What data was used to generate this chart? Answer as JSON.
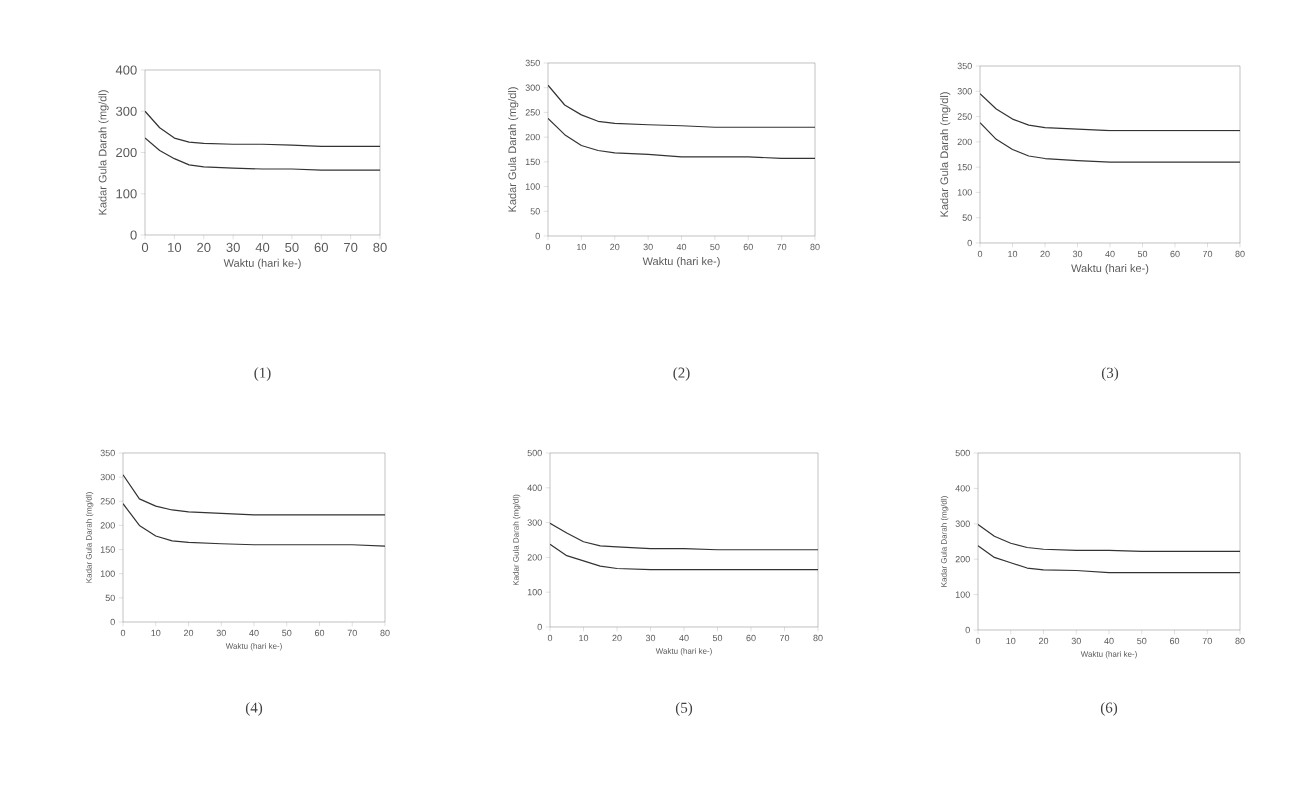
{
  "chart_data": [
    {
      "type": "line",
      "title": "(1)",
      "xlabel": "Waktu (hari ke-)",
      "ylabel": "Kadar Gula Darah (mg/dl)",
      "x": [
        0,
        5,
        10,
        15,
        20,
        30,
        40,
        50,
        60,
        70,
        80
      ],
      "xlim": [
        0,
        80
      ],
      "xticks": [
        0,
        10,
        20,
        30,
        40,
        50,
        60,
        70,
        80
      ],
      "ylim": [
        0,
        400
      ],
      "yticks": [
        0,
        100,
        200,
        300,
        400
      ],
      "series": [
        {
          "color": "#333333",
          "values": [
            300,
            260,
            235,
            225,
            222,
            220,
            220,
            218,
            215,
            215,
            215
          ]
        },
        {
          "color": "#333333",
          "values": [
            235,
            205,
            185,
            170,
            165,
            162,
            160,
            160,
            157,
            157,
            157
          ]
        }
      ]
    },
    {
      "type": "line",
      "title": "(2)",
      "xlabel": "Waktu (hari ke-)",
      "ylabel": "Kadar Gula Darah (mg/dl)",
      "x": [
        0,
        5,
        10,
        15,
        20,
        30,
        40,
        50,
        60,
        70,
        80
      ],
      "xlim": [
        0,
        80
      ],
      "xticks": [
        0,
        10,
        20,
        30,
        40,
        50,
        60,
        70,
        80
      ],
      "ylim": [
        0,
        350
      ],
      "yticks": [
        0,
        50,
        100,
        150,
        200,
        250,
        300,
        350
      ],
      "series": [
        {
          "color": "#333333",
          "values": [
            305,
            265,
            245,
            232,
            228,
            225,
            223,
            220,
            220,
            220,
            220
          ]
        },
        {
          "color": "#333333",
          "values": [
            238,
            205,
            183,
            173,
            168,
            165,
            160,
            160,
            160,
            157,
            157
          ]
        }
      ]
    },
    {
      "type": "line",
      "title": "(3)",
      "xlabel": "Waktu (hari ke-)",
      "ylabel": "Kadar Gula Darah (mg/dl)",
      "x": [
        0,
        5,
        10,
        15,
        20,
        30,
        40,
        50,
        60,
        70,
        80
      ],
      "xlim": [
        0,
        80
      ],
      "xticks": [
        0,
        10,
        20,
        30,
        40,
        50,
        60,
        70,
        80
      ],
      "ylim": [
        0,
        350
      ],
      "yticks": [
        0,
        50,
        100,
        150,
        200,
        250,
        300,
        350
      ],
      "series": [
        {
          "color": "#333333",
          "values": [
            295,
            265,
            245,
            233,
            228,
            225,
            222,
            222,
            222,
            222,
            222
          ]
        },
        {
          "color": "#333333",
          "values": [
            238,
            205,
            185,
            172,
            167,
            163,
            160,
            160,
            160,
            160,
            160
          ]
        }
      ]
    },
    {
      "type": "line",
      "title": "(4)",
      "xlabel": "Waktu (hari ke-)",
      "ylabel": "Kadar Gula Darah (mg/dl)",
      "x": [
        0,
        5,
        10,
        15,
        20,
        30,
        40,
        50,
        60,
        70,
        80
      ],
      "xlim": [
        0,
        80
      ],
      "xticks": [
        0,
        10,
        20,
        30,
        40,
        50,
        60,
        70,
        80
      ],
      "ylim": [
        0,
        350
      ],
      "yticks": [
        0,
        50,
        100,
        150,
        200,
        250,
        300,
        350
      ],
      "series": [
        {
          "color": "#333333",
          "values": [
            305,
            255,
            240,
            232,
            228,
            225,
            222,
            222,
            222,
            222,
            222
          ]
        },
        {
          "color": "#333333",
          "values": [
            245,
            200,
            178,
            168,
            165,
            162,
            160,
            160,
            160,
            160,
            157
          ]
        }
      ]
    },
    {
      "type": "line",
      "title": "(5)",
      "xlabel": "Waktu (hari ke-)",
      "ylabel": "Kadar Gula Darah (mg/dl)",
      "x": [
        0,
        5,
        10,
        15,
        20,
        30,
        40,
        50,
        60,
        70,
        80
      ],
      "xlim": [
        0,
        80
      ],
      "xticks": [
        0,
        10,
        20,
        30,
        40,
        50,
        60,
        70,
        80
      ],
      "ylim": [
        0,
        500
      ],
      "yticks": [
        0,
        100,
        200,
        300,
        400,
        500
      ],
      "series": [
        {
          "color": "#333333",
          "values": [
            298,
            270,
            245,
            233,
            230,
            225,
            225,
            222,
            222,
            222,
            222
          ]
        },
        {
          "color": "#333333",
          "values": [
            238,
            205,
            190,
            175,
            168,
            165,
            165,
            165,
            165,
            165,
            165
          ]
        }
      ]
    },
    {
      "type": "line",
      "title": "(6)",
      "xlabel": "Waktu (hari ke-)",
      "ylabel": "Kadar Gula Darah (mg/dl)",
      "x": [
        0,
        5,
        10,
        15,
        20,
        30,
        40,
        50,
        60,
        70,
        80
      ],
      "xlim": [
        0,
        80
      ],
      "xticks": [
        0,
        10,
        20,
        30,
        40,
        50,
        60,
        70,
        80
      ],
      "ylim": [
        0,
        500
      ],
      "yticks": [
        0,
        100,
        200,
        300,
        400,
        500
      ],
      "series": [
        {
          "color": "#333333",
          "values": [
            298,
            265,
            245,
            233,
            228,
            225,
            225,
            222,
            222,
            222,
            222
          ]
        },
        {
          "color": "#333333",
          "values": [
            238,
            205,
            190,
            175,
            170,
            168,
            162,
            162,
            162,
            162,
            162
          ]
        }
      ]
    }
  ]
}
